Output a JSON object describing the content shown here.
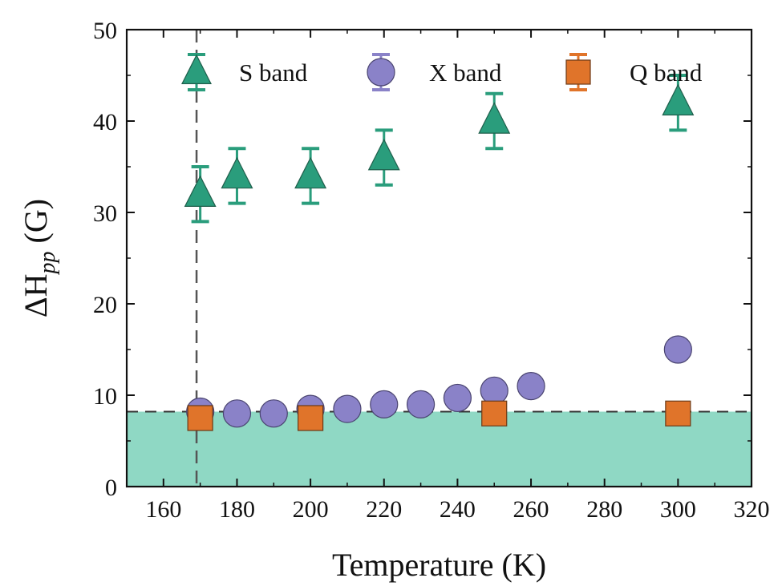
{
  "chart_data": {
    "type": "scatter",
    "xlabel": "Temperature (K)",
    "ylabel": {
      "base": "ΔH",
      "subscript": "pp",
      "unit": " (G)"
    },
    "xlim": [
      150,
      320
    ],
    "ylim": [
      0,
      50
    ],
    "xticks": [
      160,
      180,
      200,
      220,
      240,
      260,
      280,
      300,
      320
    ],
    "yticks": [
      0,
      10,
      20,
      30,
      40,
      50
    ],
    "grid": false,
    "legend_position": "top",
    "shaded_region": {
      "y_from": 0,
      "y_to": 8.2,
      "color": "#8fd8c4"
    },
    "hline": {
      "y": 8.2,
      "style": "dashed"
    },
    "vline": {
      "x": 169,
      "style": "dashed"
    },
    "series": [
      {
        "name": "S band",
        "marker": "triangle",
        "color": "#2a9d7c",
        "x": [
          170,
          180,
          200,
          220,
          250,
          300
        ],
        "y": [
          32,
          34,
          34,
          36,
          40,
          42
        ],
        "error": [
          3,
          3,
          3,
          3,
          3,
          3
        ]
      },
      {
        "name": "X band",
        "marker": "circle",
        "color": "#8a82c8",
        "x": [
          170,
          180,
          190,
          200,
          210,
          220,
          230,
          240,
          250,
          260,
          300
        ],
        "y": [
          8.2,
          8.0,
          8.0,
          8.5,
          8.5,
          9.0,
          9.0,
          9.7,
          10.5,
          11.0,
          15.0
        ]
      },
      {
        "name": "Q band",
        "marker": "square",
        "color": "#e0742a",
        "x": [
          170,
          200,
          250,
          300
        ],
        "y": [
          7.5,
          7.5,
          8.0,
          8.0
        ]
      }
    ]
  }
}
